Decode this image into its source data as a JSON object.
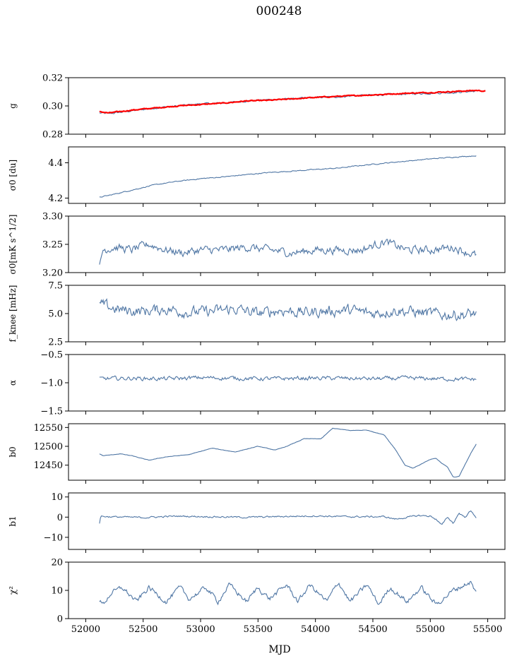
{
  "figure": {
    "title": "000248",
    "xlabel": "MJD"
  },
  "colors": {
    "series": "#4f76a4",
    "model": "#ff0000"
  },
  "chart_data": [
    {
      "type": "line",
      "ylabel": "g",
      "xlim": [
        51850,
        55650
      ],
      "ylim": [
        0.28,
        0.32
      ],
      "yticks": [
        "0.28",
        "0.30",
        "0.32"
      ],
      "ytick_values": [
        0.28,
        0.3,
        0.32
      ],
      "series": [
        {
          "x": [
            52120,
            52200,
            52400,
            52600,
            52800,
            53000,
            53200,
            53400,
            53600,
            53800,
            54000,
            54200,
            54400,
            54600,
            54800,
            55000,
            55200,
            55400
          ],
          "values": [
            0.295,
            0.2945,
            0.2965,
            0.2985,
            0.3,
            0.3015,
            0.302,
            0.3035,
            0.3045,
            0.305,
            0.306,
            0.3065,
            0.3075,
            0.308,
            0.3085,
            0.309,
            0.3095,
            0.3105
          ],
          "noise": 0.0007,
          "color_key": "series"
        },
        {
          "x": [
            52120,
            52200,
            52400,
            52600,
            52800,
            53000,
            53200,
            53400,
            53600,
            53800,
            54000,
            54200,
            54400,
            54600,
            54800,
            55000,
            55200,
            55400,
            55480
          ],
          "values": [
            0.296,
            0.295,
            0.297,
            0.2985,
            0.3,
            0.301,
            0.302,
            0.3035,
            0.304,
            0.305,
            0.306,
            0.3068,
            0.3075,
            0.3082,
            0.309,
            0.3095,
            0.3102,
            0.311,
            0.3105
          ],
          "noise": 0.0004,
          "color_key": "model"
        }
      ]
    },
    {
      "type": "line",
      "ylabel": "σ0 [du]",
      "xlim": [
        51850,
        55650
      ],
      "ylim": [
        4.17,
        4.49
      ],
      "yticks": [
        "4.2",
        "4.4"
      ],
      "ytick_values": [
        4.2,
        4.4
      ],
      "series": [
        {
          "x": [
            52120,
            52200,
            52400,
            52600,
            52800,
            53000,
            53200,
            53400,
            53600,
            53800,
            54000,
            54200,
            54400,
            54600,
            54800,
            55000,
            55200,
            55400
          ],
          "values": [
            4.205,
            4.215,
            4.245,
            4.275,
            4.295,
            4.31,
            4.32,
            4.333,
            4.345,
            4.353,
            4.362,
            4.37,
            4.385,
            4.398,
            4.41,
            4.422,
            4.432,
            4.44
          ],
          "noise": 0.003,
          "color_key": "series"
        }
      ]
    },
    {
      "type": "line",
      "ylabel": "σ0[mK s^1/2]",
      "xlim": [
        51850,
        55650
      ],
      "ylim": [
        3.2,
        3.3
      ],
      "yticks": [
        "3.20",
        "3.25",
        "3.30"
      ],
      "ytick_values": [
        3.2,
        3.25,
        3.3
      ],
      "series": [
        {
          "x": [
            52120,
            52150,
            52250,
            52400,
            52550,
            52700,
            52850,
            53000,
            53200,
            53400,
            53600,
            53800,
            54000,
            54200,
            54400,
            54600,
            54800,
            55000,
            55200,
            55400
          ],
          "values": [
            3.21,
            3.24,
            3.245,
            3.24,
            3.25,
            3.24,
            3.235,
            3.24,
            3.24,
            3.245,
            3.24,
            3.235,
            3.24,
            3.24,
            3.24,
            3.255,
            3.24,
            3.24,
            3.245,
            3.23
          ],
          "noise": 0.008,
          "color_key": "series"
        }
      ]
    },
    {
      "type": "line",
      "ylabel": "f_knee [mHz]",
      "xlim": [
        51850,
        55650
      ],
      "ylim": [
        2.5,
        7.5
      ],
      "yticks": [
        "2.5",
        "5.0",
        "7.5"
      ],
      "ytick_values": [
        2.5,
        5.0,
        7.5
      ],
      "series": [
        {
          "x": [
            52120,
            52300,
            52500,
            52700,
            52900,
            53100,
            53300,
            53500,
            53700,
            53900,
            54100,
            54300,
            54500,
            54700,
            54900,
            55100,
            55300,
            55400
          ],
          "values": [
            5.8,
            5.3,
            5.2,
            5.4,
            5.1,
            5.2,
            5.4,
            5.0,
            5.3,
            5.1,
            5.2,
            5.3,
            5.0,
            5.3,
            5.1,
            4.9,
            4.9,
            5.0
          ],
          "noise": 0.55,
          "color_key": "series"
        }
      ]
    },
    {
      "type": "line",
      "ylabel": "α",
      "xlim": [
        51850,
        55650
      ],
      "ylim": [
        -1.5,
        -0.5
      ],
      "yticks": [
        "−1.5",
        "−1.0",
        "−0.5"
      ],
      "ytick_values": [
        -1.5,
        -1.0,
        -0.5
      ],
      "series": [
        {
          "x": [
            52120,
            52400,
            52700,
            53000,
            53300,
            53600,
            53900,
            54200,
            54500,
            54800,
            55100,
            55400
          ],
          "values": [
            -0.93,
            -0.92,
            -0.93,
            -0.91,
            -0.92,
            -0.93,
            -0.92,
            -0.92,
            -0.93,
            -0.92,
            -0.93,
            -0.94
          ],
          "noise": 0.04,
          "color_key": "series"
        }
      ]
    },
    {
      "type": "line",
      "ylabel": "b0",
      "xlim": [
        51850,
        55650
      ],
      "ylim": [
        12410,
        12560
      ],
      "yticks": [
        "12450",
        "12500",
        "12550"
      ],
      "ytick_values": [
        12450,
        12500,
        12550
      ],
      "series": [
        {
          "x": [
            52120,
            52150,
            52300,
            52400,
            52550,
            52700,
            52900,
            53100,
            53300,
            53500,
            53650,
            53750,
            53900,
            54050,
            54150,
            54300,
            54450,
            54600,
            54700,
            54780,
            54850,
            55000,
            55050,
            55100,
            55150,
            55200,
            55250,
            55350,
            55400
          ],
          "values": [
            12480,
            12475,
            12480,
            12475,
            12463,
            12472,
            12478,
            12495,
            12485,
            12500,
            12490,
            12500,
            12520,
            12520,
            12548,
            12542,
            12543,
            12530,
            12490,
            12450,
            12442,
            12465,
            12468,
            12455,
            12445,
            12418,
            12420,
            12480,
            12506
          ],
          "noise": 0.6,
          "color_key": "series"
        }
      ]
    },
    {
      "type": "line",
      "ylabel": "b1",
      "xlim": [
        51850,
        55650
      ],
      "ylim": [
        -16,
        12
      ],
      "yticks": [
        "−10",
        "0",
        "10"
      ],
      "ytick_values": [
        -10,
        0,
        10
      ],
      "series": [
        {
          "x": [
            52120,
            52130,
            52200,
            52500,
            52800,
            53100,
            53400,
            53700,
            54000,
            54300,
            54600,
            54700,
            54900,
            55000,
            55050,
            55100,
            55150,
            55200,
            55250,
            55300,
            55350,
            55400
          ],
          "values": [
            -3,
            0.5,
            0.2,
            -0.2,
            0.5,
            0.2,
            -0.1,
            0.3,
            0.6,
            0.2,
            0.2,
            -1,
            0.8,
            0.5,
            -1,
            -4,
            0,
            -3,
            2,
            0,
            3,
            0
          ],
          "noise": 0.45,
          "color_key": "series"
        }
      ]
    },
    {
      "type": "line",
      "ylabel": "χ²",
      "xlim": [
        51850,
        55650
      ],
      "ylim": [
        0,
        20
      ],
      "yticks": [
        "0",
        "10",
        "20"
      ],
      "ytick_values": [
        0,
        10,
        20
      ],
      "xticks": [
        "52000",
        "52500",
        "53000",
        "53500",
        "54000",
        "54500",
        "55000",
        "55500"
      ],
      "xtick_values": [
        52000,
        52500,
        53000,
        53500,
        54000,
        54500,
        55000,
        55500
      ],
      "series": [
        {
          "x": [
            52120,
            52150,
            52220,
            52320,
            52440,
            52550,
            52700,
            52820,
            52900,
            53050,
            53150,
            53250,
            53400,
            53500,
            53600,
            53750,
            53850,
            53950,
            54100,
            54200,
            54300,
            54450,
            54550,
            54650,
            54800,
            54920,
            55050,
            55200,
            55300,
            55350,
            55400
          ],
          "values": [
            6,
            5,
            9,
            11,
            6,
            11,
            6,
            11,
            7,
            11,
            6,
            12,
            6,
            11,
            7,
            12,
            6,
            12,
            6,
            13,
            6,
            12,
            5,
            11,
            6,
            11,
            5,
            10,
            12,
            13,
            9
          ],
          "noise": 1.0,
          "color_key": "series"
        }
      ]
    }
  ]
}
